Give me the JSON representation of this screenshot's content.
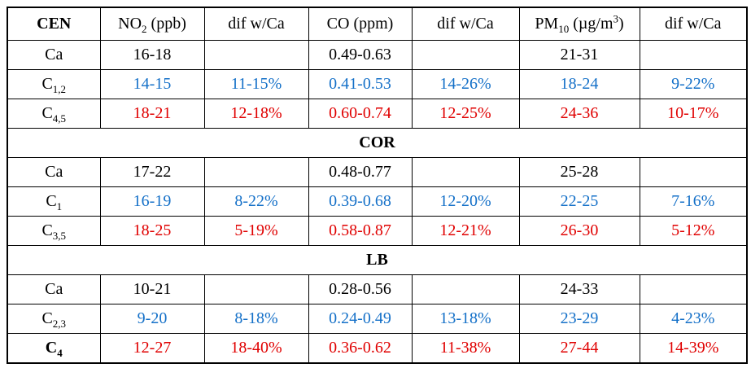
{
  "colors": {
    "black": "#000000",
    "blue": "#1470c8",
    "red": "#e00000",
    "border": "#000000",
    "background": "#ffffff"
  },
  "table": {
    "header": {
      "dif": "dif w/Ca",
      "no2": {
        "base": "NO",
        "sub": "2",
        "rest": " (ppb)"
      },
      "co": "CO (ppm)",
      "pm10": {
        "base": "PM",
        "sub": "10",
        "mid": " (µg/m",
        "sup": "3",
        "end": ")"
      }
    },
    "sections": [
      {
        "name": "CEN",
        "name_in_header": true,
        "rows": [
          {
            "label": {
              "base": "Ca",
              "sub": ""
            },
            "color": "black",
            "label_bold": false,
            "cells": [
              "16-18",
              "",
              "0.49-0.63",
              "",
              "21-31",
              ""
            ]
          },
          {
            "label": {
              "base": "C",
              "sub": "1,2"
            },
            "color": "blue",
            "label_bold": false,
            "cells": [
              "14-15",
              "11-15%",
              "0.41-0.53",
              "14-26%",
              "18-24",
              "9-22%"
            ]
          },
          {
            "label": {
              "base": "C",
              "sub": "4,5"
            },
            "color": "red",
            "label_bold": false,
            "cells": [
              "18-21",
              "12-18%",
              "0.60-0.74",
              "12-25%",
              "24-36",
              "10-17%"
            ]
          }
        ]
      },
      {
        "name": "COR",
        "name_in_header": false,
        "rows": [
          {
            "label": {
              "base": "Ca",
              "sub": ""
            },
            "color": "black",
            "label_bold": false,
            "cells": [
              "17-22",
              "",
              "0.48-0.77",
              "",
              "25-28",
              ""
            ]
          },
          {
            "label": {
              "base": "C",
              "sub": "1"
            },
            "color": "blue",
            "label_bold": false,
            "cells": [
              "16-19",
              "8-22%",
              "0.39-0.68",
              "12-20%",
              "22-25",
              "7-16%"
            ]
          },
          {
            "label": {
              "base": "C",
              "sub": "3,5"
            },
            "color": "red",
            "label_bold": false,
            "cells": [
              "18-25",
              "5-19%",
              "0.58-0.87",
              "12-21%",
              "26-30",
              "5-12%"
            ]
          }
        ]
      },
      {
        "name": "LB",
        "name_in_header": false,
        "rows": [
          {
            "label": {
              "base": "Ca",
              "sub": ""
            },
            "color": "black",
            "label_bold": false,
            "cells": [
              "10-21",
              "",
              "0.28-0.56",
              "",
              "24-33",
              ""
            ]
          },
          {
            "label": {
              "base": "C",
              "sub": "2,3"
            },
            "color": "blue",
            "label_bold": false,
            "cells": [
              "9-20",
              "8-18%",
              "0.24-0.49",
              "13-18%",
              "23-29",
              "4-23%"
            ]
          },
          {
            "label": {
              "base": "C",
              "sub": "4"
            },
            "color": "red",
            "label_bold": true,
            "cells": [
              "12-27",
              "18-40%",
              "0.36-0.62",
              "11-38%",
              "27-44",
              "14-39%"
            ]
          }
        ]
      }
    ]
  },
  "chart_data": {
    "type": "table",
    "columns": [
      "CEN",
      "NO2 (ppb)",
      "dif w/Ca",
      "CO (ppm)",
      "dif w/Ca",
      "PM10 (µg/m3)",
      "dif w/Ca"
    ],
    "sections": [
      {
        "name": "CEN",
        "rows": [
          [
            "Ca",
            "16-18",
            "",
            "0.49-0.63",
            "",
            "21-31",
            ""
          ],
          [
            "C1,2",
            "14-15",
            "11-15%",
            "0.41-0.53",
            "14-26%",
            "18-24",
            "9-22%"
          ],
          [
            "C4,5",
            "18-21",
            "12-18%",
            "0.60-0.74",
            "12-25%",
            "24-36",
            "10-17%"
          ]
        ]
      },
      {
        "name": "COR",
        "rows": [
          [
            "Ca",
            "17-22",
            "",
            "0.48-0.77",
            "",
            "25-28",
            ""
          ],
          [
            "C1",
            "16-19",
            "8-22%",
            "0.39-0.68",
            "12-20%",
            "22-25",
            "7-16%"
          ],
          [
            "C3,5",
            "18-25",
            "5-19%",
            "0.58-0.87",
            "12-21%",
            "26-30",
            "5-12%"
          ]
        ]
      },
      {
        "name": "LB",
        "rows": [
          [
            "Ca",
            "10-21",
            "",
            "0.28-0.56",
            "",
            "24-33",
            ""
          ],
          [
            "C2,3",
            "9-20",
            "8-18%",
            "0.24-0.49",
            "13-18%",
            "23-29",
            "4-23%"
          ],
          [
            "C4",
            "12-27",
            "18-40%",
            "0.36-0.62",
            "11-38%",
            "27-44",
            "14-39%"
          ]
        ]
      }
    ]
  }
}
